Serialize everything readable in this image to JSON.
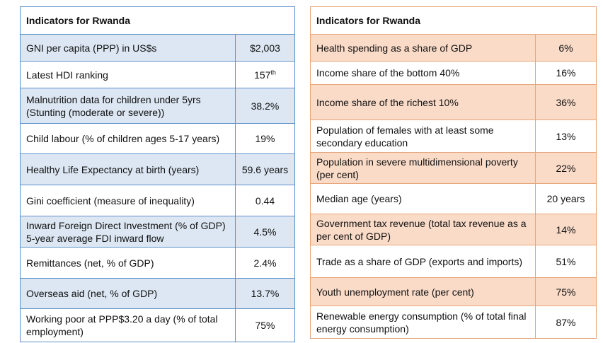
{
  "left_table": {
    "title": "Indicators for Rwanda",
    "rows": [
      {
        "label": "GNI per capita (PPP) in US$s",
        "value": "$2,003"
      },
      {
        "label": "Latest HDI ranking",
        "value": "157",
        "value_sup": "th"
      },
      {
        "label": "Malnutrition data for children under 5yrs (Stunting (moderate or severe))",
        "value": "38.2%"
      },
      {
        "label": "Child labour (% of children ages 5-17 years)",
        "value": "19%"
      },
      {
        "label": "Healthy Life Expectancy at birth (years)",
        "value": "59.6 years"
      },
      {
        "label": "Gini coefficient (measure of inequality)",
        "value": "0.44"
      },
      {
        "label": "Inward Foreign Direct Investment (% of GDP) 5-year average FDI inward flow",
        "value": "4.5%"
      },
      {
        "label": "Remittances (net, % of GDP)",
        "value": "2.4%"
      },
      {
        "label": "Overseas aid (net, % of GDP)",
        "value": "13.7%"
      },
      {
        "label": "Working poor at PPP$3.20 a day (% of total employment)",
        "value": "75%"
      }
    ]
  },
  "right_table": {
    "title": "Indicators for Rwanda",
    "rows": [
      {
        "label": "Health spending as a share of GDP",
        "value": "6%"
      },
      {
        "label": "Income share of the bottom 40%",
        "value": "16%"
      },
      {
        "label": "Income share of the richest 10%",
        "value": "36%"
      },
      {
        "label": "Population of females with at least some secondary education",
        "value": "13%"
      },
      {
        "label": "Population in severe multidimensional poverty (per cent)",
        "value": "22%"
      },
      {
        "label": "Median age (years)",
        "value": "20 years"
      },
      {
        "label": "Government tax revenue (total tax revenue as a per cent of GDP)",
        "value": "14%"
      },
      {
        "label": "Trade as a share of GDP (exports and imports)",
        "value": "51%"
      },
      {
        "label": "Youth unemployment rate (per cent)",
        "value": "75%"
      },
      {
        "label": "Renewable energy consumption (% of total final energy consumption)",
        "value": "87%"
      }
    ]
  },
  "colors": {
    "left_border": "#5b8fc9",
    "left_shade": "#dce7f3",
    "right_border": "#e8a57a",
    "right_shade": "#fadbc8"
  }
}
